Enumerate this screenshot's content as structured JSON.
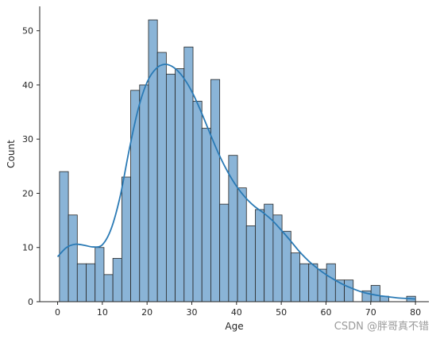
{
  "chart_data": {
    "type": "bar",
    "subtype": "histogram-with-kde",
    "title": "",
    "xlabel": "Age",
    "ylabel": "Count",
    "xlim": [
      -4,
      83
    ],
    "ylim": [
      0,
      54.5
    ],
    "xticks": [
      0,
      10,
      20,
      30,
      40,
      50,
      60,
      70,
      80
    ],
    "yticks": [
      0,
      10,
      20,
      30,
      40,
      50
    ],
    "bin_edges": [
      0.42,
      2.41,
      4.4,
      6.39,
      8.38,
      10.37,
      12.36,
      14.35,
      16.34,
      18.33,
      20.32,
      22.31,
      24.3,
      26.29,
      28.28,
      30.27,
      32.26,
      34.25,
      36.24,
      38.23,
      40.22,
      42.21,
      44.2,
      46.19,
      48.18,
      50.17,
      52.16,
      54.15,
      56.14,
      58.13,
      60.12,
      62.11,
      64.1,
      66.09,
      68.08,
      70.07,
      72.06,
      74.05,
      76.04,
      78.03,
      80.02
    ],
    "counts": [
      24,
      16,
      7,
      7,
      10,
      5,
      8,
      23,
      39,
      40,
      52,
      46,
      42,
      43,
      47,
      37,
      32,
      41,
      18,
      27,
      21,
      14,
      17,
      18,
      16,
      13,
      9,
      7,
      7,
      6,
      7,
      4,
      4,
      0,
      2,
      3,
      1,
      0,
      0,
      1
    ],
    "kde": {
      "x": [
        0,
        2,
        4,
        6,
        8,
        10,
        12,
        14,
        16,
        18,
        20,
        22,
        24,
        26,
        28,
        30,
        32,
        34,
        36,
        38,
        40,
        42,
        44,
        46,
        48,
        50,
        52,
        54,
        56,
        58,
        60,
        62,
        64,
        66,
        68,
        70,
        72,
        74,
        76,
        78,
        80
      ],
      "y": [
        8.3,
        10.0,
        10.6,
        10.4,
        10.1,
        10.5,
        13.5,
        19.5,
        28.0,
        35.5,
        40.5,
        43.0,
        43.8,
        43.2,
        41.5,
        38.8,
        35.2,
        31.2,
        27.3,
        24.0,
        21.3,
        19.2,
        17.6,
        16.4,
        15.0,
        13.2,
        11.3,
        9.3,
        7.6,
        6.2,
        5.0,
        4.0,
        3.1,
        2.4,
        1.8,
        1.4,
        1.1,
        0.9,
        0.7,
        0.6,
        0.5
      ]
    },
    "bar_fill": "#8ab4d7",
    "bar_edge": "#262626",
    "line_color": "#2a7ab5",
    "grid": false,
    "legend": "none"
  },
  "watermark": "CSDN @胖哥真不错"
}
